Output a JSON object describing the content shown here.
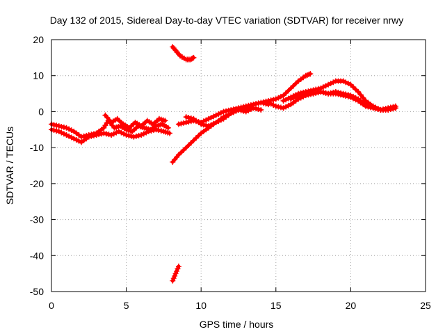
{
  "chart_data": {
    "type": "scatter",
    "title": "Day 132 of 2015, Sidereal Day-to-day VTEC variation (SDTVAR) for receiver nrwy",
    "xlabel": "GPS time / hours",
    "ylabel": "SDTVAR / TECUs",
    "xlim": [
      0,
      25
    ],
    "ylim": [
      -50,
      20
    ],
    "xticks": [
      0,
      5,
      10,
      15,
      20,
      25
    ],
    "yticks": [
      -50,
      -40,
      -30,
      -20,
      -10,
      0,
      10,
      20
    ],
    "grid": true,
    "series_color": "#ff0000",
    "series": [
      {
        "name": "segment-1",
        "x": [
          0.0,
          0.5,
          1.0,
          1.5,
          2.0,
          2.5,
          3.0,
          3.5,
          3.8,
          4.2,
          4.6,
          5.0,
          5.4,
          5.8,
          6.2,
          6.6,
          7.0,
          7.4,
          7.8
        ],
        "y": [
          -3.5,
          -4.0,
          -4.5,
          -5.5,
          -7.0,
          -6.5,
          -6.0,
          -4.5,
          -2.5,
          -4.5,
          -4.0,
          -5.0,
          -5.5,
          -4.0,
          -4.5,
          -5.0,
          -4.0,
          -3.5,
          -4.5
        ]
      },
      {
        "name": "segment-2",
        "x": [
          0.0,
          0.5,
          1.0,
          1.5,
          2.0,
          2.5,
          3.0,
          3.5,
          4.0,
          4.5,
          5.0,
          5.5,
          6.0,
          6.5,
          7.0,
          7.5,
          7.9
        ],
        "y": [
          -5.0,
          -5.5,
          -6.5,
          -7.5,
          -8.5,
          -7.0,
          -6.5,
          -6.0,
          -6.5,
          -5.5,
          -6.5,
          -7.0,
          -6.5,
          -5.5,
          -5.0,
          -5.5,
          -6.0
        ]
      },
      {
        "name": "segment-3",
        "x": [
          3.6,
          4.0,
          4.4,
          4.8,
          5.2,
          5.6,
          6.0,
          6.4,
          6.8,
          7.2,
          7.6
        ],
        "y": [
          -1.0,
          -3.0,
          -2.0,
          -3.5,
          -4.5,
          -3.0,
          -4.0,
          -2.5,
          -3.5,
          -2.0,
          -2.5
        ]
      },
      {
        "name": "segment-4",
        "x": [
          8.1,
          8.3,
          8.6,
          9.0,
          9.3,
          9.5
        ],
        "y": [
          18.0,
          17.0,
          15.5,
          14.5,
          14.5,
          15.0
        ]
      },
      {
        "name": "segment-5",
        "x": [
          8.1,
          8.3,
          8.5
        ],
        "y": [
          -47.0,
          -45.0,
          -43.0
        ]
      },
      {
        "name": "segment-6",
        "x": [
          8.1,
          8.5,
          9.0,
          9.5,
          10.0,
          10.5,
          11.0,
          11.5,
          12.0,
          12.5,
          13.0
        ],
        "y": [
          -14.0,
          -12.0,
          -10.0,
          -8.0,
          -6.0,
          -4.5,
          -3.0,
          -1.5,
          -0.5,
          0.5,
          1.0
        ]
      },
      {
        "name": "segment-7",
        "x": [
          8.5,
          9.0,
          9.5,
          10.0,
          10.5,
          11.0,
          11.5,
          12.0,
          12.5,
          13.0,
          13.5,
          14.0,
          14.5
        ],
        "y": [
          -3.5,
          -3.0,
          -2.5,
          -3.0,
          -2.0,
          -1.0,
          0.0,
          0.5,
          1.0,
          1.5,
          2.0,
          2.5,
          2.0
        ]
      },
      {
        "name": "segment-8",
        "x": [
          9.0,
          9.5,
          10.0,
          10.5,
          11.0,
          11.5,
          12.0,
          12.5,
          13.0,
          13.5,
          14.0
        ],
        "y": [
          -1.5,
          -2.0,
          -3.5,
          -4.0,
          -3.0,
          -2.0,
          -0.5,
          0.5,
          0.0,
          1.0,
          0.5
        ]
      },
      {
        "name": "segment-9",
        "x": [
          13.0,
          13.5,
          14.0,
          14.5,
          15.0,
          15.5,
          16.0,
          16.5,
          17.0,
          17.3
        ],
        "y": [
          1.0,
          2.0,
          2.5,
          3.0,
          3.5,
          4.5,
          6.5,
          8.5,
          10.0,
          10.5
        ]
      },
      {
        "name": "segment-10",
        "x": [
          14.5,
          15.0,
          15.5,
          16.0,
          16.5,
          17.0,
          17.5,
          18.0,
          18.5,
          19.0,
          19.5,
          20.0,
          20.5,
          21.0,
          21.5,
          22.0,
          22.5,
          23.0
        ],
        "y": [
          2.5,
          1.5,
          1.0,
          2.0,
          3.5,
          4.5,
          5.0,
          5.5,
          5.0,
          5.0,
          4.5,
          4.0,
          3.0,
          1.5,
          1.0,
          0.5,
          1.0,
          1.5
        ]
      },
      {
        "name": "segment-11",
        "x": [
          15.5,
          16.0,
          16.5,
          17.0,
          17.5,
          18.0,
          18.5,
          19.0,
          19.5,
          20.0,
          20.5,
          21.0,
          21.5,
          22.0,
          22.5,
          23.0
        ],
        "y": [
          3.0,
          4.0,
          5.0,
          5.5,
          6.0,
          6.5,
          7.5,
          8.5,
          8.5,
          7.5,
          5.5,
          3.0,
          1.5,
          0.5,
          0.5,
          1.0
        ]
      },
      {
        "name": "segment-12",
        "x": [
          16.0,
          16.5,
          17.0,
          17.5,
          18.0,
          18.5,
          19.0,
          19.5,
          20.0,
          20.5,
          21.0,
          21.5,
          22.0,
          22.5,
          23.0
        ],
        "y": [
          3.5,
          4.5,
          5.0,
          5.0,
          5.5,
          5.0,
          5.5,
          5.0,
          4.5,
          3.5,
          2.0,
          1.0,
          0.5,
          0.5,
          1.0
        ]
      }
    ]
  }
}
